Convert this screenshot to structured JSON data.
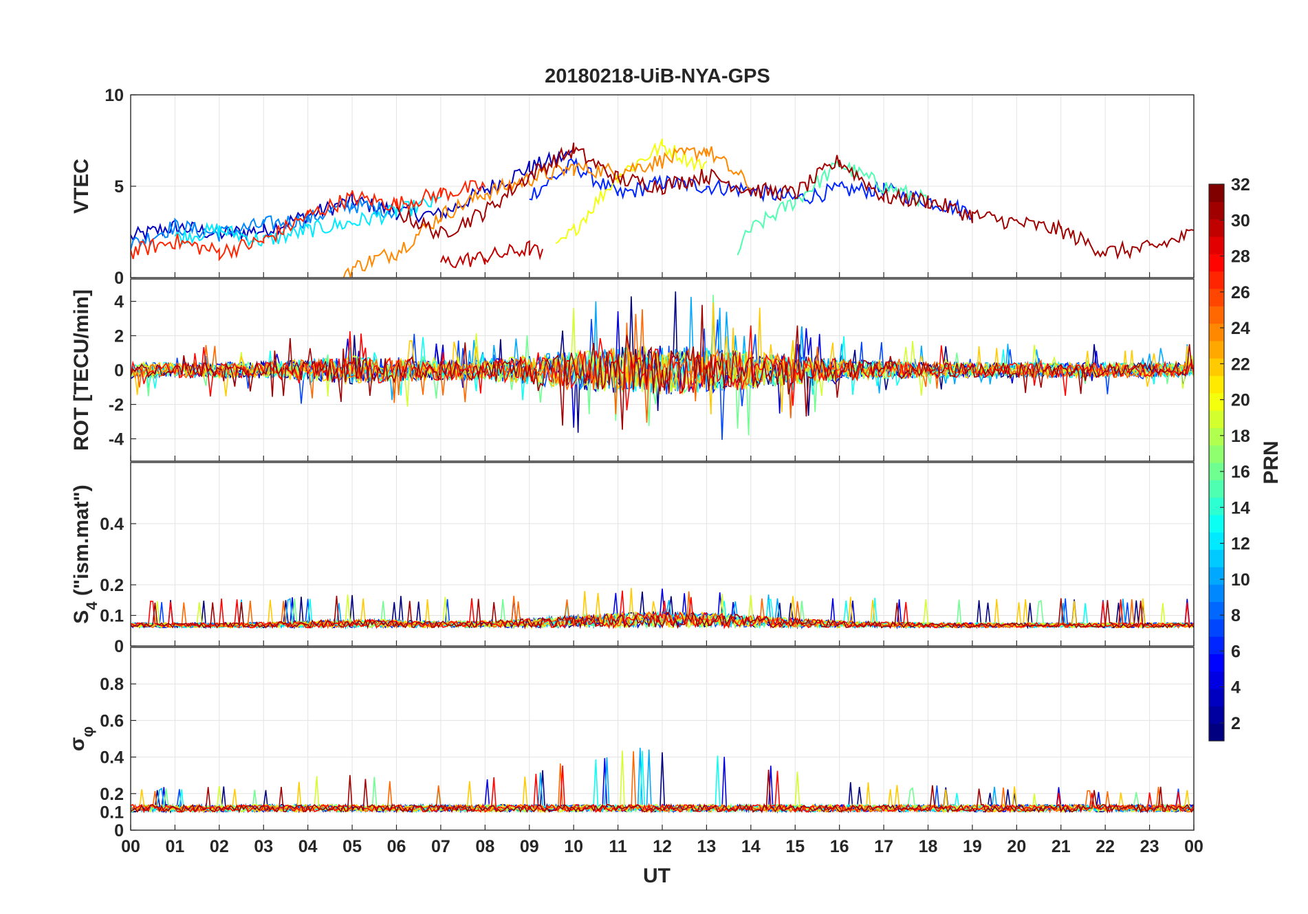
{
  "chart_data": {
    "type": "line",
    "title": "20180218-UiB-NYA-GPS",
    "xlabel": "UT",
    "x_ticks": [
      "00",
      "01",
      "02",
      "03",
      "04",
      "05",
      "06",
      "07",
      "08",
      "09",
      "10",
      "11",
      "12",
      "13",
      "14",
      "15",
      "16",
      "17",
      "18",
      "19",
      "20",
      "21",
      "22",
      "23",
      "00"
    ],
    "xlim": [
      0,
      24
    ],
    "grid": true,
    "colormap": "jet",
    "colorbar": {
      "label": "PRN",
      "range": [
        1,
        32
      ],
      "ticks": [
        "2",
        "4",
        "6",
        "8",
        "10",
        "12",
        "14",
        "16",
        "18",
        "20",
        "22",
        "24",
        "26",
        "28",
        "30",
        "32"
      ],
      "placement": "right"
    },
    "panels": [
      {
        "id": "vtec",
        "ylabel": "VTEC",
        "ylim": [
          0,
          10
        ],
        "yticks": [
          "0",
          "5",
          "10"
        ],
        "envelope_note_free": true,
        "series": [
          {
            "prn": 3,
            "x": [
              0.0,
              1.0,
              2.0,
              3.0,
              4.0,
              5.0,
              6.0,
              7.0,
              8.0,
              9.0,
              10.0
            ],
            "y": [
              2.2,
              2.8,
              2.4,
              2.6,
              3.4,
              4.2,
              3.6,
              3.4,
              4.8,
              6.0,
              6.8
            ]
          },
          {
            "prn": 6,
            "x": [
              9.0,
              10.0,
              11.0,
              12.0,
              13.0,
              14.0,
              15.0,
              16.0,
              17.0,
              18.0,
              19.0
            ],
            "y": [
              4.5,
              6.2,
              4.5,
              5.2,
              5.0,
              4.8,
              4.3,
              4.8,
              4.8,
              4.2,
              3.6
            ]
          },
          {
            "prn": 9,
            "x": [
              0.0,
              1.0,
              2.0,
              3.0,
              4.0,
              5.0,
              6.0
            ],
            "y": [
              1.8,
              2.8,
              2.4,
              2.9,
              3.2,
              4.0,
              3.6
            ]
          },
          {
            "prn": 12,
            "x": [
              1.0,
              2.0,
              3.0,
              4.0,
              5.0,
              6.0,
              7.0
            ],
            "y": [
              2.2,
              2.6,
              2.0,
              2.6,
              3.0,
              3.6,
              4.2
            ]
          },
          {
            "prn": 15,
            "x": [
              13.7,
              14.0,
              15.0,
              16.0,
              17.0,
              18.0
            ],
            "y": [
              1.5,
              2.6,
              4.2,
              6.2,
              5.0,
              4.2
            ]
          },
          {
            "prn": 20,
            "x": [
              9.6,
              10.0,
              11.0,
              12.0,
              13.0
            ],
            "y": [
              1.5,
              2.6,
              5.6,
              7.2,
              6.0
            ]
          },
          {
            "prn": 24,
            "x": [
              4.8,
              5.5,
              6.0,
              7.0,
              8.0,
              9.0,
              10.0,
              11.0,
              12.0,
              13.0,
              14.0
            ],
            "y": [
              0.3,
              1.0,
              1.4,
              3.4,
              4.6,
              5.4,
              6.0,
              5.8,
              6.4,
              7.0,
              5.0
            ]
          },
          {
            "prn": 27,
            "x": [
              0.0,
              1.0,
              2.0,
              3.0,
              4.0,
              5.0,
              6.0,
              7.0,
              8.0
            ],
            "y": [
              1.4,
              2.0,
              1.4,
              2.0,
              3.4,
              4.4,
              4.0,
              4.6,
              5.0
            ]
          },
          {
            "prn": 30,
            "x": [
              7.0,
              8.0,
              9.0,
              9.3
            ],
            "y": [
              0.8,
              1.1,
              1.6,
              1.2
            ]
          },
          {
            "prn": 31,
            "x": [
              6.0,
              7.0,
              8.0,
              9.0,
              10.0,
              11.0,
              12.0,
              13.0,
              14.0,
              15.0,
              16.0,
              17.0,
              18.0,
              19.0,
              20.0,
              21.0,
              22.0,
              23.0,
              24.0
            ],
            "y": [
              3.6,
              2.4,
              3.6,
              5.6,
              7.0,
              5.4,
              5.0,
              5.6,
              4.8,
              4.6,
              6.4,
              4.4,
              4.2,
              3.4,
              3.0,
              2.6,
              1.4,
              1.6,
              2.4
            ]
          }
        ]
      },
      {
        "id": "rot",
        "ylabel": "ROT [TECU/min]",
        "ylim": [
          -5.3,
          5.3
        ],
        "yticks": [
          "-4",
          "-2",
          "0",
          "2",
          "4"
        ]
      },
      {
        "id": "s4",
        "ylabel": "S4 (\"ism.mat\")",
        "ylabel_base": "S",
        "ylabel_sub": "4",
        "ylabel_rest": " (\"ism.mat\")",
        "ylim": [
          0,
          0.6
        ],
        "yticks": [
          "0",
          "0.1",
          "0.2",
          "0.4"
        ]
      },
      {
        "id": "sigma_phi",
        "ylabel": "σφ",
        "ylabel_base": "σ",
        "ylabel_sub": "φ",
        "ylim": [
          0,
          1
        ],
        "yticks": [
          "0",
          "0.1",
          "0.2",
          "0.4",
          "0.6",
          "0.8"
        ]
      }
    ]
  }
}
